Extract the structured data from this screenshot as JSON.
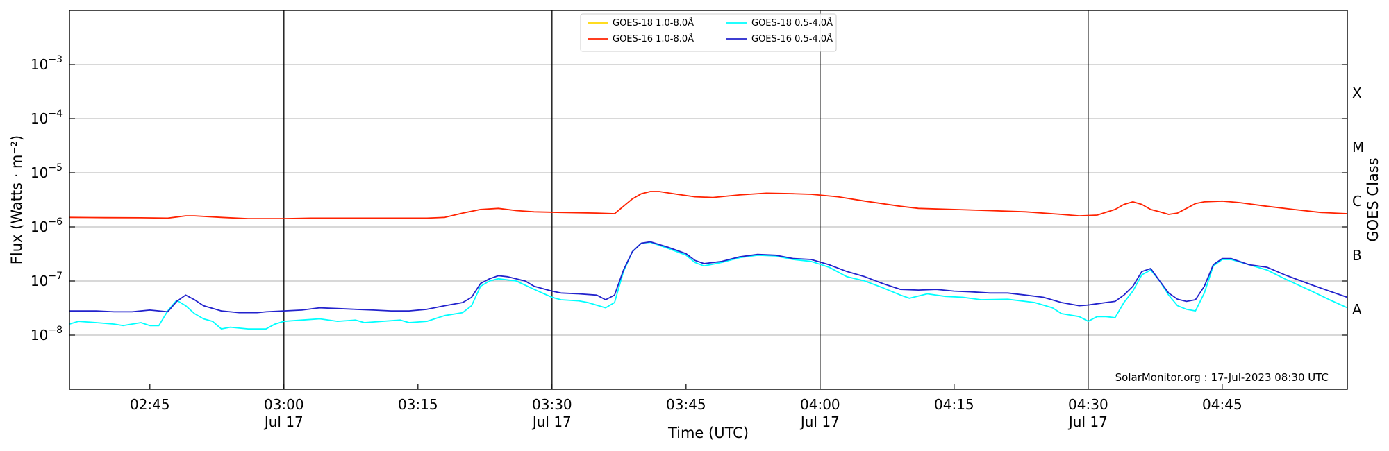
{
  "chart_data": {
    "type": "line",
    "xlabel": "Time (UTC)",
    "ylabel": "Flux (Watts · m⁻²)",
    "ylabel_right": "GOES Class",
    "x_unit": "minutes after 02:00 UTC, Jul 17 2023",
    "xlim": [
      36,
      179
    ],
    "yscale": "log",
    "ylim": [
      1e-09,
      0.01
    ],
    "y_ticks": [
      {
        "value": 1e-08,
        "base": "10",
        "exp": "−8"
      },
      {
        "value": 1e-07,
        "base": "10",
        "exp": "−7"
      },
      {
        "value": 1e-06,
        "base": "10",
        "exp": "−6"
      },
      {
        "value": 1e-05,
        "base": "10",
        "exp": "−5"
      },
      {
        "value": 0.0001,
        "base": "10",
        "exp": "−4"
      },
      {
        "value": 0.001,
        "base": "10",
        "exp": "−3"
      }
    ],
    "x_ticks": [
      {
        "value": 45,
        "label": "02:45",
        "sublabel": ""
      },
      {
        "value": 60,
        "label": "03:00",
        "sublabel": "Jul 17"
      },
      {
        "value": 75,
        "label": "03:15",
        "sublabel": ""
      },
      {
        "value": 90,
        "label": "03:30",
        "sublabel": "Jul 17"
      },
      {
        "value": 105,
        "label": "03:45",
        "sublabel": ""
      },
      {
        "value": 120,
        "label": "04:00",
        "sublabel": "Jul 17"
      },
      {
        "value": 135,
        "label": "04:15",
        "sublabel": ""
      },
      {
        "value": 150,
        "label": "04:30",
        "sublabel": "Jul 17"
      },
      {
        "value": 165,
        "label": "04:45",
        "sublabel": ""
      }
    ],
    "vertical_lines": [
      60,
      90,
      120,
      150
    ],
    "goes_classes": [
      {
        "label": "A",
        "flux": 3e-08
      },
      {
        "label": "B",
        "flux": 3e-07
      },
      {
        "label": "C",
        "flux": 3e-06
      },
      {
        "label": "M",
        "flux": 3e-05
      },
      {
        "label": "X",
        "flux": 0.0003
      }
    ],
    "grid": "horizontal",
    "legend_position": "top-center",
    "annotation": "SolarMonitor.org : 17-Jul-2023 08:30 UTC",
    "series": [
      {
        "name": "GOES-18 1.0-8.0Å",
        "color": "#ffd700",
        "points": []
      },
      {
        "name": "GOES-16 1.0-8.0Å",
        "color": "#ff2200",
        "points": [
          [
            36,
            1.5e-06
          ],
          [
            40,
            1.48e-06
          ],
          [
            44,
            1.47e-06
          ],
          [
            47,
            1.45e-06
          ],
          [
            49,
            1.6e-06
          ],
          [
            50,
            1.6e-06
          ],
          [
            53,
            1.5e-06
          ],
          [
            56,
            1.42e-06
          ],
          [
            60,
            1.42e-06
          ],
          [
            63,
            1.45e-06
          ],
          [
            66,
            1.45e-06
          ],
          [
            70,
            1.45e-06
          ],
          [
            74,
            1.45e-06
          ],
          [
            76,
            1.45e-06
          ],
          [
            78,
            1.5e-06
          ],
          [
            80,
            1.8e-06
          ],
          [
            82,
            2.1e-06
          ],
          [
            84,
            2.2e-06
          ],
          [
            86,
            2e-06
          ],
          [
            88,
            1.9e-06
          ],
          [
            91,
            1.85e-06
          ],
          [
            95,
            1.8e-06
          ],
          [
            97,
            1.75e-06
          ],
          [
            99,
            3.3e-06
          ],
          [
            100,
            4.1e-06
          ],
          [
            101,
            4.5e-06
          ],
          [
            102,
            4.5e-06
          ],
          [
            104,
            4e-06
          ],
          [
            106,
            3.6e-06
          ],
          [
            108,
            3.5e-06
          ],
          [
            111,
            3.9e-06
          ],
          [
            114,
            4.2e-06
          ],
          [
            117,
            4.1e-06
          ],
          [
            119,
            4e-06
          ],
          [
            122,
            3.6e-06
          ],
          [
            125,
            3e-06
          ],
          [
            129,
            2.4e-06
          ],
          [
            131,
            2.2e-06
          ],
          [
            135,
            2.1e-06
          ],
          [
            139,
            2e-06
          ],
          [
            143,
            1.9e-06
          ],
          [
            147,
            1.7e-06
          ],
          [
            149,
            1.6e-06
          ],
          [
            151,
            1.65e-06
          ],
          [
            153,
            2.1e-06
          ],
          [
            154,
            2.6e-06
          ],
          [
            155,
            2.9e-06
          ],
          [
            156,
            2.6e-06
          ],
          [
            157,
            2.1e-06
          ],
          [
            158,
            1.9e-06
          ],
          [
            159,
            1.7e-06
          ],
          [
            160,
            1.8e-06
          ],
          [
            161,
            2.2e-06
          ],
          [
            162,
            2.7e-06
          ],
          [
            163,
            2.9e-06
          ],
          [
            165,
            3e-06
          ],
          [
            167,
            2.8e-06
          ],
          [
            170,
            2.4e-06
          ],
          [
            173,
            2.1e-06
          ],
          [
            176,
            1.85e-06
          ],
          [
            179,
            1.75e-06
          ]
        ]
      },
      {
        "name": "GOES-18 0.5-4.0Å",
        "color": "#00ffff",
        "points": [
          [
            36,
            1.6e-08
          ],
          [
            37,
            1.8e-08
          ],
          [
            39,
            1.7e-08
          ],
          [
            41,
            1.6e-08
          ],
          [
            42,
            1.5e-08
          ],
          [
            43,
            1.6e-08
          ],
          [
            44,
            1.7e-08
          ],
          [
            45,
            1.5e-08
          ],
          [
            46,
            1.5e-08
          ],
          [
            47,
            2.8e-08
          ],
          [
            48,
            4.4e-08
          ],
          [
            49,
            3.5e-08
          ],
          [
            50,
            2.5e-08
          ],
          [
            51,
            2e-08
          ],
          [
            52,
            1.8e-08
          ],
          [
            53,
            1.3e-08
          ],
          [
            54,
            1.4e-08
          ],
          [
            56,
            1.3e-08
          ],
          [
            58,
            1.3e-08
          ],
          [
            59,
            1.6e-08
          ],
          [
            60,
            1.8e-08
          ],
          [
            62,
            1.9e-08
          ],
          [
            64,
            2e-08
          ],
          [
            66,
            1.8e-08
          ],
          [
            68,
            1.9e-08
          ],
          [
            69,
            1.7e-08
          ],
          [
            71,
            1.8e-08
          ],
          [
            73,
            1.9e-08
          ],
          [
            74,
            1.7e-08
          ],
          [
            76,
            1.8e-08
          ],
          [
            78,
            2.3e-08
          ],
          [
            80,
            2.6e-08
          ],
          [
            81,
            3.5e-08
          ],
          [
            82,
            8e-08
          ],
          [
            83,
            1e-07
          ],
          [
            84,
            1.1e-07
          ],
          [
            86,
            1e-07
          ],
          [
            88,
            7e-08
          ],
          [
            90,
            5e-08
          ],
          [
            91,
            4.5e-08
          ],
          [
            93,
            4.3e-08
          ],
          [
            94,
            4e-08
          ],
          [
            96,
            3.2e-08
          ],
          [
            97,
            4e-08
          ],
          [
            98,
            1.5e-07
          ],
          [
            99,
            3.5e-07
          ],
          [
            100,
            5e-07
          ],
          [
            101,
            5.2e-07
          ],
          [
            103,
            4e-07
          ],
          [
            105,
            3e-07
          ],
          [
            106,
            2.2e-07
          ],
          [
            107,
            1.9e-07
          ],
          [
            109,
            2.2e-07
          ],
          [
            111,
            2.7e-07
          ],
          [
            113,
            3e-07
          ],
          [
            115,
            2.9e-07
          ],
          [
            117,
            2.5e-07
          ],
          [
            119,
            2.3e-07
          ],
          [
            121,
            1.8e-07
          ],
          [
            123,
            1.2e-07
          ],
          [
            125,
            1e-07
          ],
          [
            127,
            7.5e-08
          ],
          [
            129,
            5.5e-08
          ],
          [
            130,
            4.8e-08
          ],
          [
            132,
            5.8e-08
          ],
          [
            134,
            5.2e-08
          ],
          [
            136,
            5e-08
          ],
          [
            138,
            4.5e-08
          ],
          [
            141,
            4.6e-08
          ],
          [
            144,
            4e-08
          ],
          [
            146,
            3.2e-08
          ],
          [
            147,
            2.5e-08
          ],
          [
            149,
            2.2e-08
          ],
          [
            150,
            1.8e-08
          ],
          [
            151,
            2.2e-08
          ],
          [
            152,
            2.2e-08
          ],
          [
            153,
            2.1e-08
          ],
          [
            154,
            4e-08
          ],
          [
            155,
            6.5e-08
          ],
          [
            156,
            1.3e-07
          ],
          [
            157,
            1.6e-07
          ],
          [
            158,
            1e-07
          ],
          [
            159,
            5.5e-08
          ],
          [
            160,
            3.5e-08
          ],
          [
            161,
            3e-08
          ],
          [
            162,
            2.8e-08
          ],
          [
            163,
            6e-08
          ],
          [
            164,
            1.9e-07
          ],
          [
            165,
            2.5e-07
          ],
          [
            166,
            2.5e-07
          ],
          [
            168,
            2e-07
          ],
          [
            170,
            1.6e-07
          ],
          [
            172,
            1.1e-07
          ],
          [
            175,
            6.5e-08
          ],
          [
            177,
            4.5e-08
          ],
          [
            179,
            3.2e-08
          ],
          [
            180,
            2.6e-08
          ],
          [
            181,
            2.2e-08
          ]
        ]
      },
      {
        "name": "GOES-16 0.5-4.0Å",
        "color": "#2222cc",
        "points": [
          [
            36,
            2.8e-08
          ],
          [
            39,
            2.8e-08
          ],
          [
            41,
            2.7e-08
          ],
          [
            43,
            2.7e-08
          ],
          [
            44,
            2.8e-08
          ],
          [
            45,
            2.9e-08
          ],
          [
            46,
            2.8e-08
          ],
          [
            47,
            2.7e-08
          ],
          [
            48,
            4.2e-08
          ],
          [
            49,
            5.5e-08
          ],
          [
            50,
            4.5e-08
          ],
          [
            51,
            3.5e-08
          ],
          [
            53,
            2.8e-08
          ],
          [
            55,
            2.6e-08
          ],
          [
            57,
            2.6e-08
          ],
          [
            58,
            2.7e-08
          ],
          [
            60,
            2.8e-08
          ],
          [
            62,
            2.9e-08
          ],
          [
            64,
            3.2e-08
          ],
          [
            66,
            3.1e-08
          ],
          [
            68,
            3e-08
          ],
          [
            70,
            2.9e-08
          ],
          [
            72,
            2.8e-08
          ],
          [
            74,
            2.8e-08
          ],
          [
            76,
            3e-08
          ],
          [
            78,
            3.5e-08
          ],
          [
            80,
            4e-08
          ],
          [
            81,
            5e-08
          ],
          [
            82,
            9e-08
          ],
          [
            83,
            1.1e-07
          ],
          [
            84,
            1.25e-07
          ],
          [
            85,
            1.2e-07
          ],
          [
            87,
            1e-07
          ],
          [
            88,
            8e-08
          ],
          [
            90,
            6.5e-08
          ],
          [
            91,
            6e-08
          ],
          [
            93,
            5.8e-08
          ],
          [
            95,
            5.5e-08
          ],
          [
            96,
            4.5e-08
          ],
          [
            97,
            5.5e-08
          ],
          [
            98,
            1.6e-07
          ],
          [
            99,
            3.5e-07
          ],
          [
            100,
            5e-07
          ],
          [
            101,
            5.3e-07
          ],
          [
            103,
            4.2e-07
          ],
          [
            105,
            3.2e-07
          ],
          [
            106,
            2.4e-07
          ],
          [
            107,
            2.1e-07
          ],
          [
            109,
            2.3e-07
          ],
          [
            111,
            2.8e-07
          ],
          [
            113,
            3.1e-07
          ],
          [
            115,
            3e-07
          ],
          [
            117,
            2.6e-07
          ],
          [
            119,
            2.5e-07
          ],
          [
            121,
            2e-07
          ],
          [
            123,
            1.5e-07
          ],
          [
            125,
            1.2e-07
          ],
          [
            127,
            9e-08
          ],
          [
            129,
            7e-08
          ],
          [
            131,
            6.8e-08
          ],
          [
            133,
            7e-08
          ],
          [
            135,
            6.5e-08
          ],
          [
            137,
            6.3e-08
          ],
          [
            139,
            6e-08
          ],
          [
            141,
            6e-08
          ],
          [
            143,
            5.5e-08
          ],
          [
            145,
            5e-08
          ],
          [
            147,
            4e-08
          ],
          [
            149,
            3.5e-08
          ],
          [
            150,
            3.6e-08
          ],
          [
            151,
            3.8e-08
          ],
          [
            152,
            4e-08
          ],
          [
            153,
            4.2e-08
          ],
          [
            154,
            5.5e-08
          ],
          [
            155,
            8e-08
          ],
          [
            156,
            1.5e-07
          ],
          [
            157,
            1.7e-07
          ],
          [
            158,
            1e-07
          ],
          [
            159,
            6e-08
          ],
          [
            160,
            4.6e-08
          ],
          [
            161,
            4.2e-08
          ],
          [
            162,
            4.5e-08
          ],
          [
            163,
            8e-08
          ],
          [
            164,
            2e-07
          ],
          [
            165,
            2.6e-07
          ],
          [
            166,
            2.6e-07
          ],
          [
            168,
            2e-07
          ],
          [
            170,
            1.8e-07
          ],
          [
            172,
            1.3e-07
          ],
          [
            175,
            8.5e-08
          ],
          [
            177,
            6.5e-08
          ],
          [
            179,
            5e-08
          ],
          [
            181,
            3.8e-08
          ]
        ]
      }
    ]
  }
}
